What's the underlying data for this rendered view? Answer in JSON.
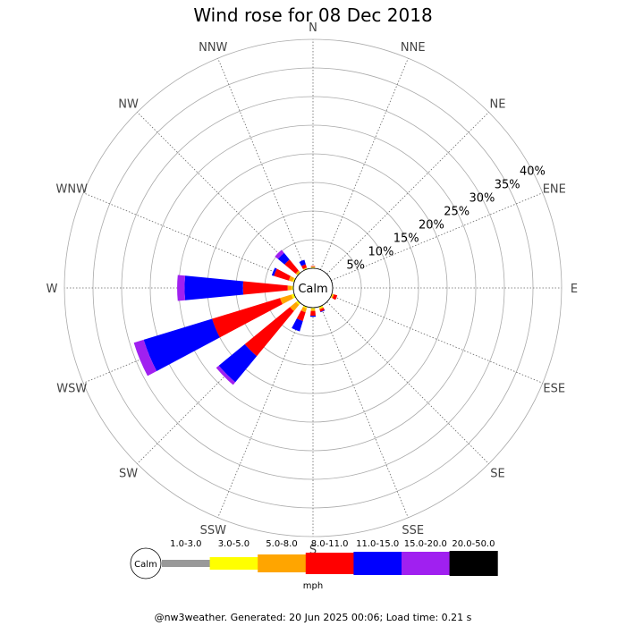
{
  "title": "Wind rose for 08 Dec 2018",
  "footer": "@nw3weather. Generated: 20 Jun 2025 00:06; Load time: 0.21 s",
  "chart_data": {
    "type": "wind-rose",
    "title": "Wind rose for 08 Dec 2018",
    "directions": [
      "N",
      "NNE",
      "NE",
      "ENE",
      "E",
      "ESE",
      "SE",
      "SSE",
      "S",
      "SSW",
      "SW",
      "WSW",
      "W",
      "WNW",
      "NW",
      "NNW"
    ],
    "radial_ticks": [
      "5%",
      "10%",
      "15%",
      "20%",
      "25%",
      "30%",
      "35%",
      "40%"
    ],
    "radial_values": [
      5,
      10,
      15,
      20,
      25,
      30,
      35,
      40
    ],
    "calm_label": "Calm",
    "unit_label": "mph",
    "bins": [
      {
        "label": "1.0-3.0",
        "color": "#999999"
      },
      {
        "label": "3.0-5.0",
        "color": "#ffff00"
      },
      {
        "label": "5.0-8.0",
        "color": "#ffa500"
      },
      {
        "label": "8.0-11.0",
        "color": "#ff0000"
      },
      {
        "label": "11.0-15.0",
        "color": "#0000ff"
      },
      {
        "label": "15.0-20.0",
        "color": "#a020f0"
      },
      {
        "label": "20.0-50.0",
        "color": "#000000"
      }
    ],
    "petals": [
      {
        "direction": "N",
        "cumulative": [
          0.1,
          0.2,
          0.3,
          0.4,
          0.4,
          0.4,
          0.4
        ]
      },
      {
        "direction": "NNE",
        "cumulative": [
          0,
          0,
          0,
          0,
          0,
          0,
          0
        ]
      },
      {
        "direction": "NE",
        "cumulative": [
          0,
          0,
          0,
          0,
          0,
          0,
          0
        ]
      },
      {
        "direction": "ENE",
        "cumulative": [
          0,
          0,
          0,
          0,
          0,
          0,
          0
        ]
      },
      {
        "direction": "E",
        "cumulative": [
          0,
          0,
          0,
          0,
          0,
          0,
          0
        ]
      },
      {
        "direction": "ESE",
        "cumulative": [
          0.1,
          0.2,
          0.4,
          1.0,
          1.0,
          1.0,
          1.0
        ]
      },
      {
        "direction": "SE",
        "cumulative": [
          0,
          0,
          0,
          0,
          0,
          0,
          0
        ]
      },
      {
        "direction": "SSE",
        "cumulative": [
          0.1,
          0.3,
          0.5,
          0.9,
          1.0,
          1.0,
          1.0
        ]
      },
      {
        "direction": "S",
        "cumulative": [
          0.1,
          0.3,
          0.6,
          1.4,
          1.6,
          1.6,
          1.6
        ]
      },
      {
        "direction": "SSW",
        "cumulative": [
          0.1,
          0.3,
          1.0,
          2.6,
          4.5,
          4.5,
          4.5
        ]
      },
      {
        "direction": "SW",
        "cumulative": [
          0.1,
          0.4,
          1.8,
          12.0,
          17.9,
          18.5,
          18.5
        ]
      },
      {
        "direction": "WSW",
        "cumulative": [
          0.1,
          0.5,
          2.6,
          15.0,
          27.5,
          29.3,
          29.3
        ]
      },
      {
        "direction": "W",
        "cumulative": [
          0.1,
          0.3,
          1.0,
          8.8,
          19.0,
          20.3,
          20.3
        ]
      },
      {
        "direction": "WNW",
        "cumulative": [
          0.1,
          0.3,
          1.0,
          3.7,
          4.1,
          4.1,
          4.1
        ]
      },
      {
        "direction": "NW",
        "cumulative": [
          0.1,
          0.2,
          0.5,
          3.0,
          4.5,
          5.2,
          5.2
        ]
      },
      {
        "direction": "NNW",
        "cumulative": [
          0.1,
          0.2,
          0.3,
          0.9,
          1.7,
          1.7,
          1.7
        ]
      }
    ]
  }
}
